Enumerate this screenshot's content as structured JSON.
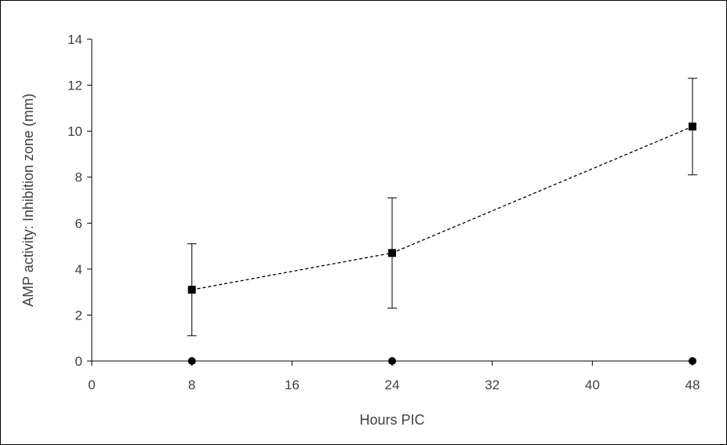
{
  "chart_data": {
    "type": "line",
    "xlabel": "Hours PIC",
    "ylabel": "AMP activity: Inhibition zone (mm)",
    "xlim": [
      0,
      48
    ],
    "ylim": [
      0,
      14
    ],
    "xticks": [
      "0",
      "8",
      "16",
      "24",
      "32",
      "40",
      "48"
    ],
    "yticks": [
      "0",
      "2",
      "4",
      "6",
      "8",
      "10",
      "12",
      "14"
    ],
    "x": [
      8,
      24,
      48
    ],
    "grid": false,
    "series": [
      {
        "marker": "square",
        "line": "dashed",
        "values": [
          3.1,
          4.7,
          10.2
        ],
        "error": [
          2.0,
          2.4,
          2.1
        ]
      },
      {
        "marker": "circle",
        "line": "none",
        "values": [
          0,
          0,
          0
        ]
      }
    ]
  }
}
